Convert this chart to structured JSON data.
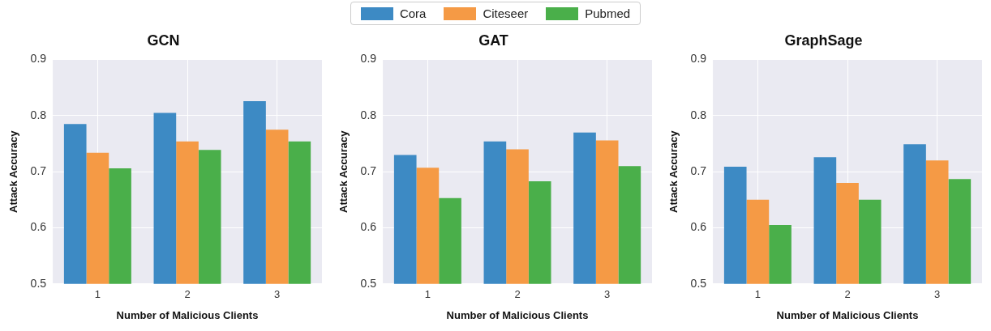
{
  "chart_data": [
    {
      "type": "bar",
      "title": "GCN",
      "xlabel": "Number of Malicious Clients",
      "ylabel": "Attack Accuracy",
      "categories": [
        "1",
        "2",
        "3"
      ],
      "series": [
        {
          "name": "Cora",
          "color": "#3d8ac4",
          "values": [
            0.785,
            0.805,
            0.826
          ]
        },
        {
          "name": "Citeseer",
          "color": "#f59a45",
          "values": [
            0.734,
            0.754,
            0.775
          ]
        },
        {
          "name": "Pubmed",
          "color": "#4aaf4a",
          "values": [
            0.706,
            0.739,
            0.754
          ]
        }
      ],
      "ylim": [
        0.5,
        0.9
      ],
      "yticks": [
        0.5,
        0.6,
        0.7,
        0.8,
        0.9
      ],
      "grid": true,
      "legend": "top"
    },
    {
      "type": "bar",
      "title": "GAT",
      "xlabel": "Number of Malicious Clients",
      "ylabel": "Attack Accuracy",
      "categories": [
        "1",
        "2",
        "3"
      ],
      "series": [
        {
          "name": "Cora",
          "color": "#3d8ac4",
          "values": [
            0.73,
            0.754,
            0.77
          ]
        },
        {
          "name": "Citeseer",
          "color": "#f59a45",
          "values": [
            0.707,
            0.74,
            0.756
          ]
        },
        {
          "name": "Pubmed",
          "color": "#4aaf4a",
          "values": [
            0.653,
            0.683,
            0.71
          ]
        }
      ],
      "ylim": [
        0.5,
        0.9
      ],
      "yticks": [
        0.5,
        0.6,
        0.7,
        0.8,
        0.9
      ],
      "grid": true
    },
    {
      "type": "bar",
      "title": "GraphSage",
      "xlabel": "Number of Malicious Clients",
      "ylabel": "Attack Accuracy",
      "categories": [
        "1",
        "2",
        "3"
      ],
      "series": [
        {
          "name": "Cora",
          "color": "#3d8ac4",
          "values": [
            0.709,
            0.726,
            0.749
          ]
        },
        {
          "name": "Citeseer",
          "color": "#f59a45",
          "values": [
            0.65,
            0.68,
            0.72
          ]
        },
        {
          "name": "Pubmed",
          "color": "#4aaf4a",
          "values": [
            0.605,
            0.65,
            0.687
          ]
        }
      ],
      "ylim": [
        0.5,
        0.9
      ],
      "yticks": [
        0.5,
        0.6,
        0.7,
        0.8,
        0.9
      ],
      "grid": true
    }
  ]
}
